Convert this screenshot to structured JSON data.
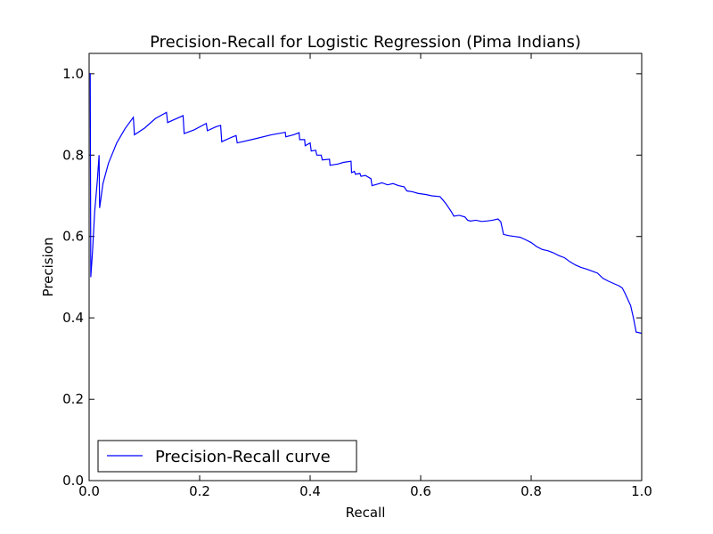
{
  "chart_data": {
    "type": "line",
    "title": "Precision-Recall for Logistic Regression (Pima Indians)",
    "xlabel": "Recall",
    "ylabel": "Precision",
    "xlim": [
      0.0,
      1.0
    ],
    "ylim": [
      0.0,
      1.05
    ],
    "x_ticks": [
      0.0,
      0.2,
      0.4,
      0.6,
      0.8,
      1.0
    ],
    "x_tick_labels": [
      "0.0",
      "0.2",
      "0.4",
      "0.6",
      "0.8",
      "1.0"
    ],
    "y_ticks": [
      0.0,
      0.2,
      0.4,
      0.6,
      0.8,
      1.0
    ],
    "y_tick_labels": [
      "0.0",
      "0.2",
      "0.4",
      "0.6",
      "0.8",
      "1.0"
    ],
    "grid": false,
    "legend_position": "lower-left",
    "series": [
      {
        "name": "Precision-Recall curve",
        "color": "#0000ff",
        "points": [
          [
            0.0,
            1.0
          ],
          [
            0.002,
            1.0
          ],
          [
            0.003,
            0.5
          ],
          [
            0.006,
            0.56
          ],
          [
            0.01,
            0.66
          ],
          [
            0.015,
            0.74
          ],
          [
            0.018,
            0.8
          ],
          [
            0.019,
            0.67
          ],
          [
            0.025,
            0.73
          ],
          [
            0.035,
            0.78
          ],
          [
            0.05,
            0.83
          ],
          [
            0.065,
            0.865
          ],
          [
            0.08,
            0.893
          ],
          [
            0.082,
            0.85
          ],
          [
            0.1,
            0.866
          ],
          [
            0.12,
            0.89
          ],
          [
            0.14,
            0.905
          ],
          [
            0.142,
            0.88
          ],
          [
            0.17,
            0.897
          ],
          [
            0.172,
            0.853
          ],
          [
            0.19,
            0.862
          ],
          [
            0.212,
            0.878
          ],
          [
            0.214,
            0.86
          ],
          [
            0.23,
            0.87
          ],
          [
            0.238,
            0.873
          ],
          [
            0.24,
            0.833
          ],
          [
            0.26,
            0.845
          ],
          [
            0.266,
            0.848
          ],
          [
            0.268,
            0.83
          ],
          [
            0.3,
            0.84
          ],
          [
            0.33,
            0.85
          ],
          [
            0.355,
            0.856
          ],
          [
            0.356,
            0.845
          ],
          [
            0.37,
            0.85
          ],
          [
            0.38,
            0.855
          ],
          [
            0.381,
            0.838
          ],
          [
            0.39,
            0.838
          ],
          [
            0.391,
            0.823
          ],
          [
            0.4,
            0.83
          ],
          [
            0.402,
            0.81
          ],
          [
            0.41,
            0.812
          ],
          [
            0.412,
            0.8
          ],
          [
            0.42,
            0.8
          ],
          [
            0.422,
            0.788
          ],
          [
            0.435,
            0.79
          ],
          [
            0.436,
            0.775
          ],
          [
            0.45,
            0.778
          ],
          [
            0.46,
            0.782
          ],
          [
            0.474,
            0.785
          ],
          [
            0.475,
            0.757
          ],
          [
            0.48,
            0.76
          ],
          [
            0.482,
            0.753
          ],
          [
            0.49,
            0.755
          ],
          [
            0.492,
            0.748
          ],
          [
            0.5,
            0.75
          ],
          [
            0.51,
            0.742
          ],
          [
            0.512,
            0.725
          ],
          [
            0.52,
            0.728
          ],
          [
            0.53,
            0.732
          ],
          [
            0.54,
            0.727
          ],
          [
            0.55,
            0.73
          ],
          [
            0.56,
            0.725
          ],
          [
            0.57,
            0.722
          ],
          [
            0.575,
            0.712
          ],
          [
            0.585,
            0.71
          ],
          [
            0.595,
            0.706
          ],
          [
            0.61,
            0.703
          ],
          [
            0.62,
            0.7
          ],
          [
            0.635,
            0.698
          ],
          [
            0.64,
            0.69
          ],
          [
            0.645,
            0.682
          ],
          [
            0.65,
            0.672
          ],
          [
            0.655,
            0.662
          ],
          [
            0.66,
            0.65
          ],
          [
            0.67,
            0.652
          ],
          [
            0.68,
            0.648
          ],
          [
            0.685,
            0.64
          ],
          [
            0.69,
            0.638
          ],
          [
            0.7,
            0.64
          ],
          [
            0.71,
            0.637
          ],
          [
            0.72,
            0.638
          ],
          [
            0.73,
            0.64
          ],
          [
            0.74,
            0.643
          ],
          [
            0.745,
            0.636
          ],
          [
            0.75,
            0.605
          ],
          [
            0.76,
            0.602
          ],
          [
            0.77,
            0.6
          ],
          [
            0.78,
            0.598
          ],
          [
            0.79,
            0.592
          ],
          [
            0.8,
            0.585
          ],
          [
            0.81,
            0.575
          ],
          [
            0.82,
            0.568
          ],
          [
            0.83,
            0.565
          ],
          [
            0.84,
            0.56
          ],
          [
            0.85,
            0.553
          ],
          [
            0.86,
            0.548
          ],
          [
            0.87,
            0.538
          ],
          [
            0.88,
            0.53
          ],
          [
            0.89,
            0.524
          ],
          [
            0.9,
            0.52
          ],
          [
            0.91,
            0.515
          ],
          [
            0.92,
            0.51
          ],
          [
            0.93,
            0.497
          ],
          [
            0.94,
            0.49
          ],
          [
            0.95,
            0.484
          ],
          [
            0.96,
            0.478
          ],
          [
            0.965,
            0.473
          ],
          [
            0.97,
            0.46
          ],
          [
            0.975,
            0.445
          ],
          [
            0.98,
            0.43
          ],
          [
            0.985,
            0.4
          ],
          [
            0.99,
            0.365
          ],
          [
            1.0,
            0.362
          ]
        ]
      }
    ]
  }
}
